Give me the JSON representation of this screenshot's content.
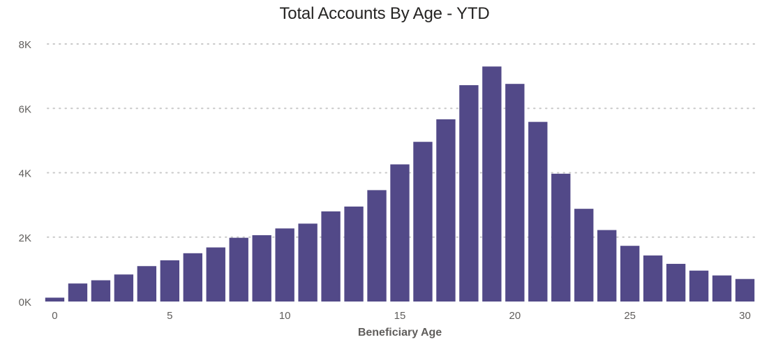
{
  "chart_data": {
    "type": "bar",
    "title": "Total Accounts By Age - YTD",
    "xlabel": "Beneficiary Age",
    "ylabel": "",
    "x": [
      0,
      1,
      2,
      3,
      4,
      5,
      6,
      7,
      8,
      9,
      10,
      11,
      12,
      13,
      14,
      15,
      16,
      17,
      18,
      19,
      20,
      21,
      22,
      23,
      24,
      25,
      26,
      27,
      28,
      29,
      30
    ],
    "values": [
      120,
      560,
      660,
      840,
      1100,
      1280,
      1500,
      1680,
      1980,
      2060,
      2270,
      2420,
      2800,
      2950,
      3460,
      4260,
      4960,
      5660,
      6720,
      7300,
      6760,
      5580,
      3970,
      2880,
      2220,
      1730,
      1430,
      1170,
      960,
      810,
      700
    ],
    "ylim": [
      0,
      8000
    ],
    "y_ticks": [
      0,
      2000,
      4000,
      6000,
      8000
    ],
    "y_tick_labels": [
      "0K",
      "2K",
      "4K",
      "6K",
      "8K"
    ],
    "x_ticks": [
      0,
      5,
      10,
      15,
      20,
      25,
      30
    ],
    "x_tick_labels": [
      "0",
      "5",
      "10",
      "15",
      "20",
      "25",
      "30"
    ],
    "grid": "horizontal-dotted",
    "legend": "none",
    "bar_color": "#524988",
    "grid_color": "#c8c8c8",
    "tick_label_color": "#605e5c",
    "axis_label_color": "#605e5c",
    "title_color": "#252423"
  }
}
